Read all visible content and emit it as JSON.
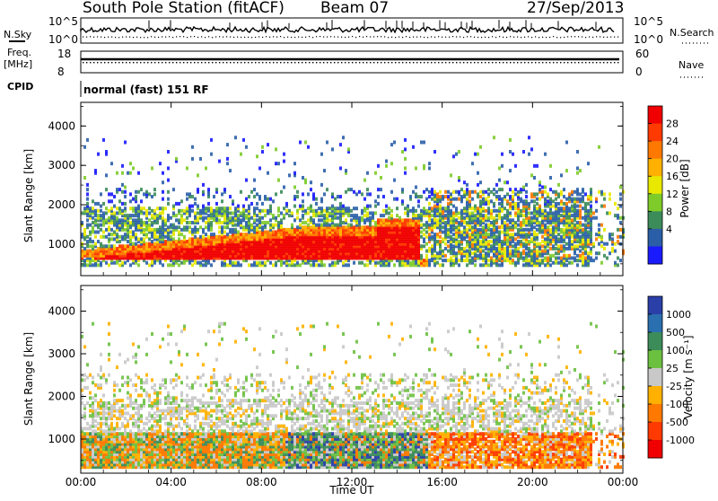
{
  "header": {
    "station": "South Pole Station (fitACF)",
    "beam": "Beam 07",
    "date": "27/Sep/2013"
  },
  "top_panels": {
    "nsky_label": "N.Sky",
    "nsky_ticks": [
      "10^5",
      "10^0"
    ],
    "nsearch_label": "N.Search",
    "freq_label_1": "Freq.",
    "freq_label_2": "[MHz]",
    "freq_ticks": [
      "18",
      "8"
    ],
    "nave_label": "Nave",
    "nave_ticks": [
      "60",
      "0"
    ],
    "cpid_label": "CPID",
    "cpid_value": "normal (fast) 151 RF"
  },
  "chart_data": [
    {
      "type": "heatmap",
      "name": "power-panel",
      "ylabel": "Slant Range [km]",
      "ylim": [
        200,
        4600
      ],
      "yticks": [
        "4000",
        "3000",
        "2000",
        "1000"
      ],
      "xlim_hours": [
        0,
        24
      ],
      "colorbar": {
        "label": "Power [dB]",
        "ticks": [
          "28",
          "24",
          "20",
          "16",
          "12",
          "8",
          "4"
        ],
        "colors": [
          "#f00000",
          "#ff3a00",
          "#ff7800",
          "#ffb000",
          "#e8e800",
          "#7ecb2a",
          "#3c8c5a",
          "#2a5fa8",
          "#1a1aff"
        ]
      }
    },
    {
      "type": "heatmap",
      "name": "velocity-panel",
      "ylabel": "Slant Range [km]",
      "ylim": [
        200,
        4600
      ],
      "yticks": [
        "4000",
        "3000",
        "2000",
        "1000"
      ],
      "xlim_hours": [
        0,
        24
      ],
      "colorbar": {
        "label": "Velocity [m s⁻¹]",
        "ticks": [
          "1000",
          "500",
          "100",
          "25",
          "-25",
          "-100",
          "-500",
          "-1000"
        ],
        "colors": [
          "#2a3fa8",
          "#2a6fb0",
          "#3c8c5a",
          "#6cc040",
          "#c8c8c8",
          "#ffb000",
          "#ff7800",
          "#ff3a00",
          "#f00000"
        ]
      }
    }
  ],
  "x_axis": {
    "ticks": [
      "00:00",
      "04:00",
      "08:00",
      "12:00",
      "16:00",
      "20:00",
      "00:00"
    ],
    "label": "Time UT"
  }
}
